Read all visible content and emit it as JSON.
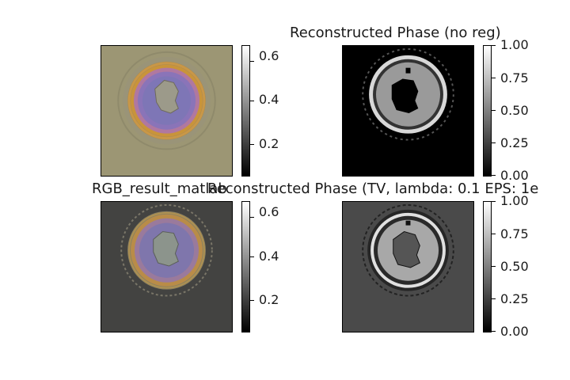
{
  "figure": {
    "panels": [
      {
        "id": "tl",
        "title": "",
        "cbar_ticks": [
          "0.2",
          "0.4",
          "0.6"
        ]
      },
      {
        "id": "tr",
        "title": "Reconstructed Phase (no reg)",
        "cbar_ticks": [
          "0.00",
          "0.25",
          "0.50",
          "0.75",
          "1.00"
        ]
      },
      {
        "id": "bl",
        "title": "RGB_result_matlab",
        "cbar_ticks": [
          "0.2",
          "0.4",
          "0.6"
        ]
      },
      {
        "id": "br",
        "title": "Reconstructed Phase (TV, lambda: 0.1 EPS: 1e",
        "cbar_ticks": [
          "0.00",
          "0.25",
          "0.50",
          "0.75",
          "1.00"
        ]
      }
    ]
  },
  "chart_data": [
    {
      "type": "heatmap",
      "title": "",
      "colorbar": {
        "cmap": "gray",
        "range": [
          0.05,
          0.65
        ],
        "ticks": [
          0.2,
          0.4,
          0.6
        ]
      }
    },
    {
      "type": "heatmap",
      "title": "Reconstructed Phase (no reg)",
      "colorbar": {
        "cmap": "gray",
        "range": [
          0.0,
          1.0
        ],
        "ticks": [
          0.0,
          0.25,
          0.5,
          0.75,
          1.0
        ]
      }
    },
    {
      "type": "heatmap",
      "title": "RGB_result_matlab",
      "colorbar": {
        "cmap": "gray",
        "range": [
          0.05,
          0.65
        ],
        "ticks": [
          0.2,
          0.4,
          0.6
        ]
      }
    },
    {
      "type": "heatmap",
      "title": "Reconstructed Phase (TV, lambda: 0.1 EPS: 1e",
      "colorbar": {
        "cmap": "gray",
        "range": [
          0.0,
          1.0
        ],
        "ticks": [
          0.0,
          0.25,
          0.5,
          0.75,
          1.0
        ]
      }
    }
  ]
}
